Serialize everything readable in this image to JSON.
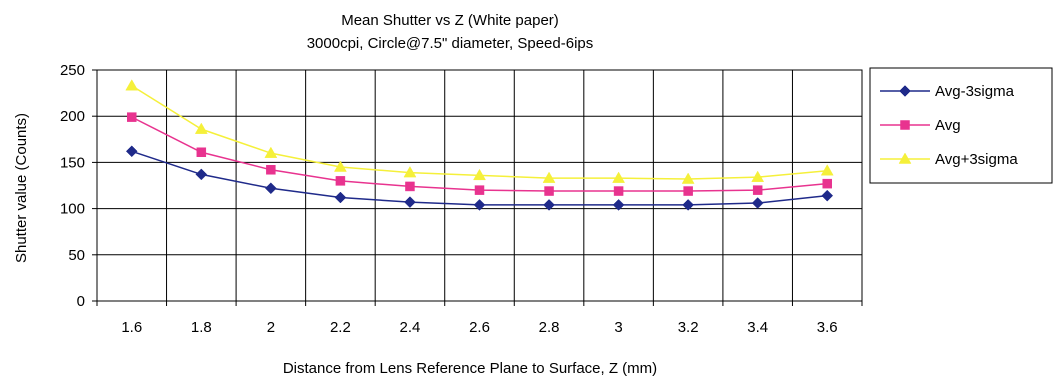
{
  "chart_data": {
    "type": "line",
    "title": "Mean Shutter vs Z (White paper)",
    "subtitle": "3000cpi, Circle@7.5\" diameter, Speed-6ips",
    "xlabel": "Distance from Lens Reference Plane to Surface, Z (mm)",
    "ylabel": "Shutter value (Counts)",
    "categories": [
      "1.6",
      "1.8",
      "2",
      "2.2",
      "2.4",
      "2.6",
      "2.8",
      "3",
      "3.2",
      "3.4",
      "3.6"
    ],
    "ylim": [
      0,
      250
    ],
    "yticks": [
      "0",
      "50",
      "100",
      "150",
      "200",
      "250"
    ],
    "grid": true,
    "legend_position": "right",
    "series": [
      {
        "name": "Avg-3sigma",
        "color": "#1f2a8a",
        "marker": "diamond",
        "values": [
          162,
          137,
          122,
          112,
          107,
          104,
          104,
          104,
          104,
          106,
          114
        ]
      },
      {
        "name": "Avg",
        "color": "#e8338f",
        "marker": "square",
        "values": [
          199,
          161,
          142,
          130,
          124,
          120,
          119,
          119,
          119,
          120,
          127
        ]
      },
      {
        "name": "Avg+3sigma",
        "color": "#f5f03a",
        "marker": "triangle",
        "values": [
          233,
          186,
          160,
          145,
          139,
          136,
          133,
          133,
          132,
          134,
          141
        ]
      }
    ]
  }
}
